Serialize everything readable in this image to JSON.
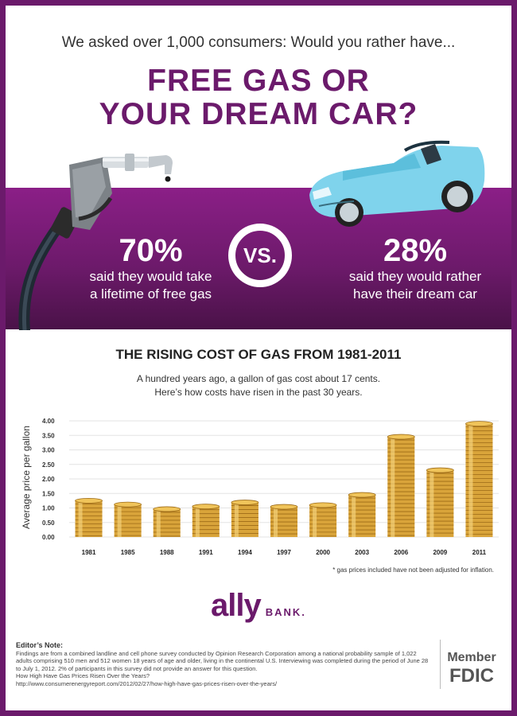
{
  "header": {
    "intro": "We asked over 1,000 consumers: Would you rather have...",
    "headline_line1": "FREE GAS OR",
    "headline_line2": "YOUR DREAM CAR?"
  },
  "versus": {
    "left_percent": "70%",
    "left_text_1": "said they would take",
    "left_text_2": "a lifetime of free gas",
    "vs_label": "VS.",
    "right_percent": "28%",
    "right_text_1": "said they would rather",
    "right_text_2": "have their dream car"
  },
  "chart_section": {
    "title": "THE RISING COST OF GAS FROM 1981-2011",
    "subtitle_line1": "A hundred years ago, a gallon of gas cost about 17 cents.",
    "subtitle_line2": "Here’s how costs have risen in the past 30 years.",
    "footnote": "* gas prices included have not been adjusted for inflation."
  },
  "chart_data": {
    "type": "bar",
    "title": "THE RISING COST OF GAS FROM 1981-2011",
    "xlabel": "",
    "ylabel": "Average price per gallon",
    "categories": [
      "1981",
      "1985",
      "1988",
      "1991",
      "1994",
      "1997",
      "2000",
      "2003",
      "2006",
      "2009",
      "2011"
    ],
    "values": [
      1.25,
      1.12,
      0.96,
      1.05,
      1.19,
      1.04,
      1.1,
      1.45,
      3.45,
      2.3,
      3.9
    ],
    "ylim": [
      0,
      4.0
    ],
    "yticks": [
      "0.00",
      "0.50",
      "1.00",
      "1.50",
      "2.00",
      "2.50",
      "3.00",
      "3.50",
      "4.00"
    ],
    "grid": true,
    "bar_style": "stacked gold coins"
  },
  "logo": {
    "name": "ally",
    "suffix": "BANK."
  },
  "editor_note": {
    "label": "Editor’s Note:",
    "body": "Findings are from a combined landline and cell phone survey conducted by Opinion Research Corporation among a national probability sample of 1,022 adults comprising 510 men and 512 women 18 years of age and older, living in the continental U.S. Interviewing was completed during the period of June 28 to July 1, 2012. 2% of participants in this survey did not provide an answer for this question.",
    "source_title": "How High Have Gas Prices Risen Over the Years?",
    "source_url": "http://www.consumerenergyreport.com/2012/02/27/how-high-have-gas-prices-risen-over-the-years/"
  },
  "fdic": {
    "member": "Member",
    "fdic": "FDIC"
  },
  "colors": {
    "brand_purple": "#6b1a6b",
    "car_blue": "#7fd3ec",
    "coin_gold": "#d9a43a"
  },
  "icons": {
    "pump": "gas-pump-nozzle-icon",
    "car": "convertible-car-icon"
  }
}
